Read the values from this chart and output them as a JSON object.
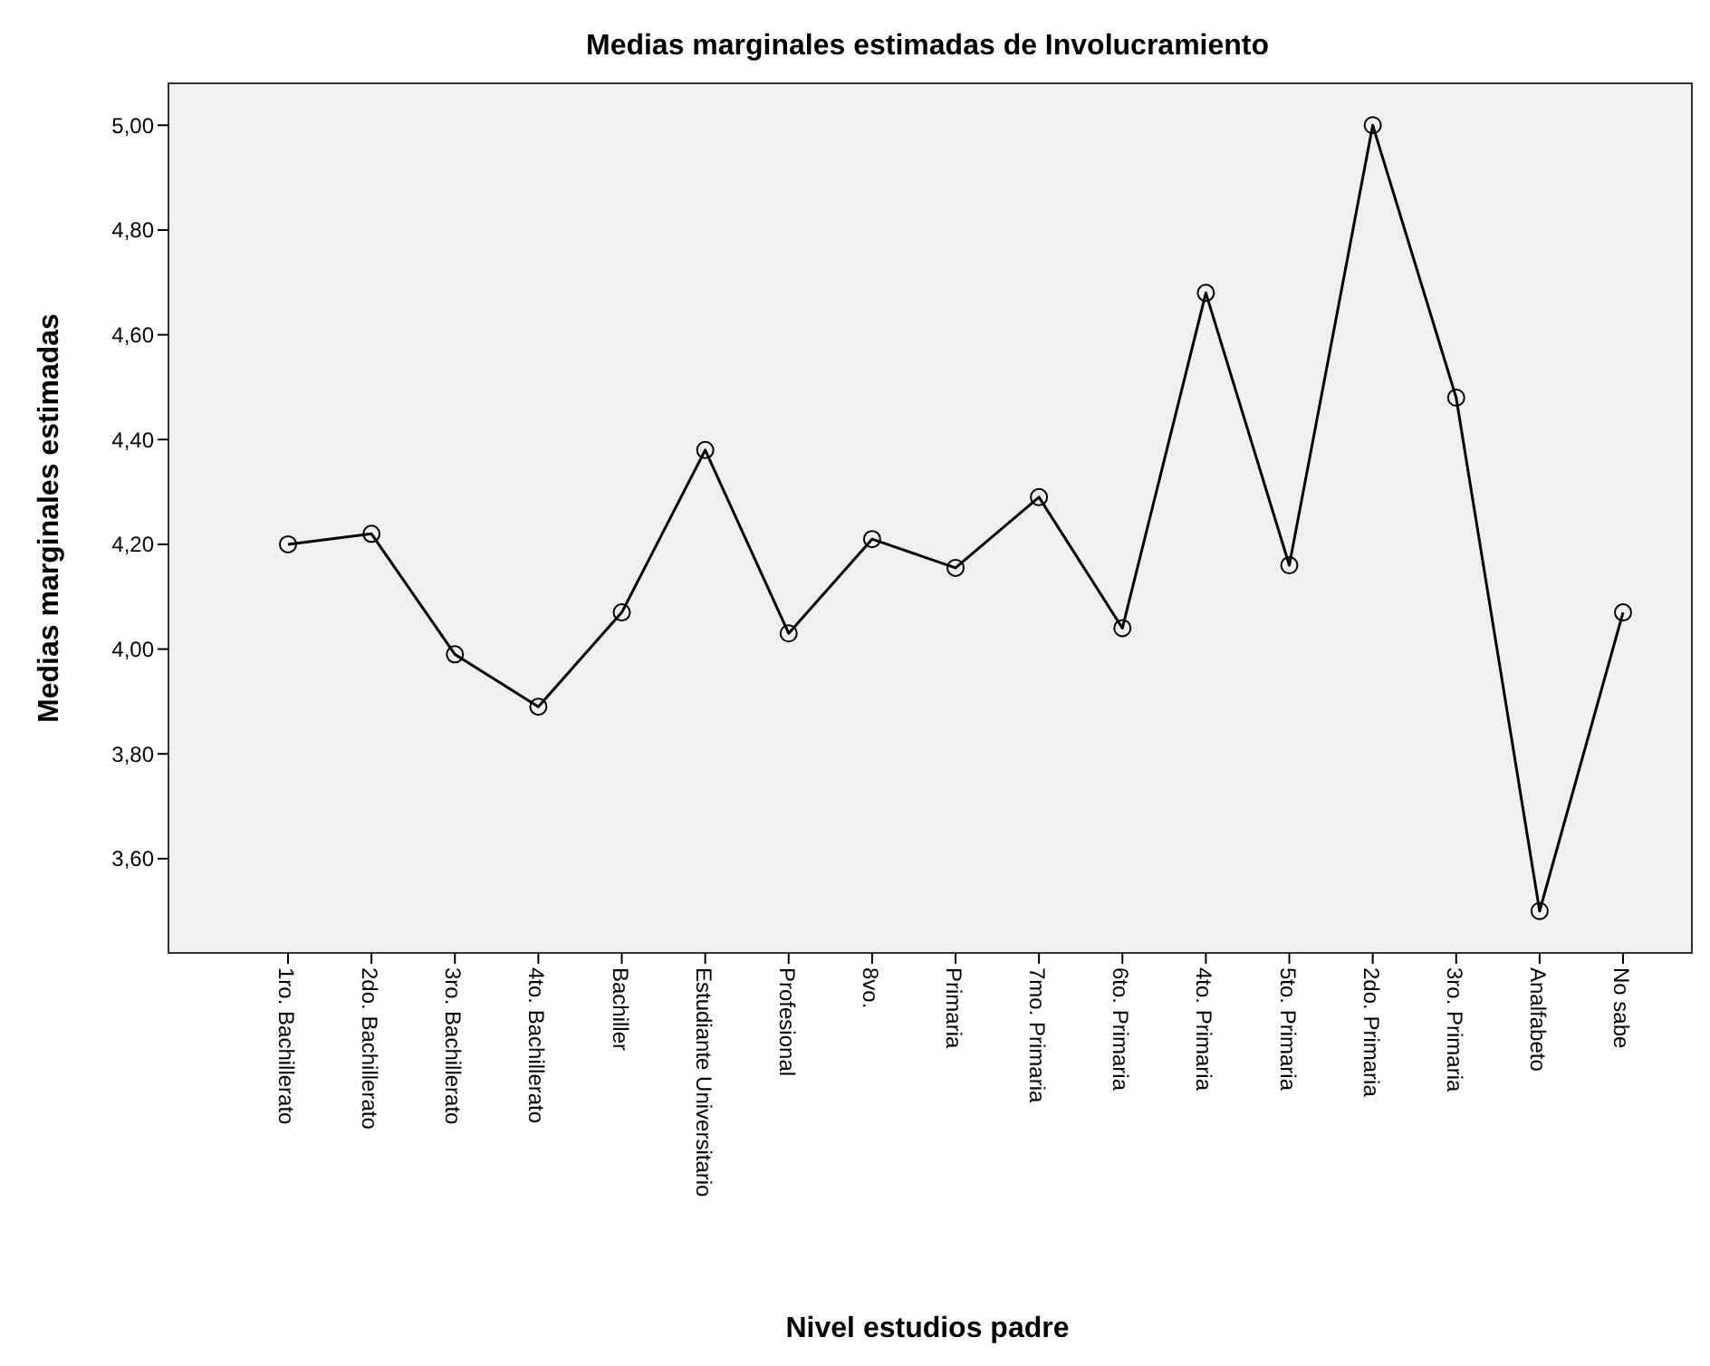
{
  "chart_data": {
    "type": "line",
    "title": "Medias marginales estimadas de Involucramiento",
    "xlabel": "Nivel estudios padre",
    "ylabel": "Medias marginales estimadas",
    "categories": [
      "1ro. Bachillerato",
      "2do. Bachillerato",
      "3ro. Bachillerato",
      "4to. Bachillerato",
      "Bachiller",
      "Estudiante Universitario",
      "Profesional",
      "8vo.",
      "Primaria",
      "7mo. Primaria",
      "6to. Primaria",
      "4to. Primaria",
      "5to. Primaria",
      "2do. Primaria",
      "3ro. Primaria",
      "Analfabeto",
      "No sabe"
    ],
    "series": [
      {
        "color": "#000000",
        "values": [
          4.2,
          4.22,
          3.99,
          3.89,
          4.07,
          4.38,
          4.03,
          4.21,
          4.155,
          4.29,
          4.04,
          4.68,
          4.16,
          5.0,
          4.48,
          3.5,
          4.07
        ]
      }
    ],
    "ylim": [
      3.42,
      5.08
    ],
    "yticks": [
      {
        "value": 3.6,
        "label": "3,60"
      },
      {
        "value": 3.8,
        "label": "3,80"
      },
      {
        "value": 4.0,
        "label": "4,00"
      },
      {
        "value": 4.2,
        "label": "4,20"
      },
      {
        "value": 4.4,
        "label": "4,40"
      },
      {
        "value": 4.6,
        "label": "4,60"
      },
      {
        "value": 4.8,
        "label": "4,80"
      },
      {
        "value": 5.0,
        "label": "5,00"
      }
    ],
    "grid": false,
    "marker": "circle",
    "line_style": "solid"
  }
}
